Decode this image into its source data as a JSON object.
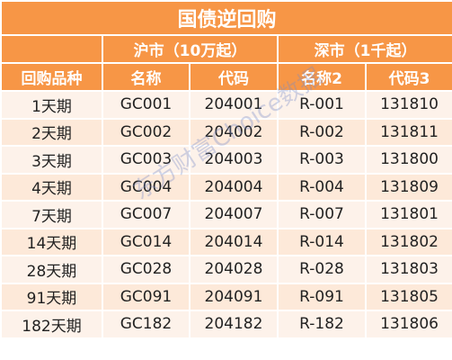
{
  "title": "国债逆回购",
  "groups": [
    "沪市（10万起）",
    "深市（1千起）"
  ],
  "columns": [
    "回购品种",
    "名称",
    "代码",
    "名称2",
    "代码3"
  ],
  "rows": [
    [
      "1天期",
      "GC001",
      "204001",
      "R-001",
      "131810"
    ],
    [
      "2天期",
      "GC002",
      "204002",
      "R-002",
      "131811"
    ],
    [
      "3天期",
      "GC003",
      "204003",
      "R-003",
      "131800"
    ],
    [
      "4天期",
      "GC004",
      "204004",
      "R-004",
      "131809"
    ],
    [
      "7天期",
      "GC007",
      "204007",
      "R-007",
      "131801"
    ],
    [
      "14天期",
      "GC014",
      "204014",
      "R-014",
      "131802"
    ],
    [
      "28天期",
      "GC028",
      "204028",
      "R-028",
      "131803"
    ],
    [
      "91天期",
      "GC091",
      "204091",
      "R-091",
      "131805"
    ],
    [
      "182天期",
      "GC182",
      "204182",
      "R-182",
      "131806"
    ]
  ],
  "watermark": "东方财富Choice数据"
}
